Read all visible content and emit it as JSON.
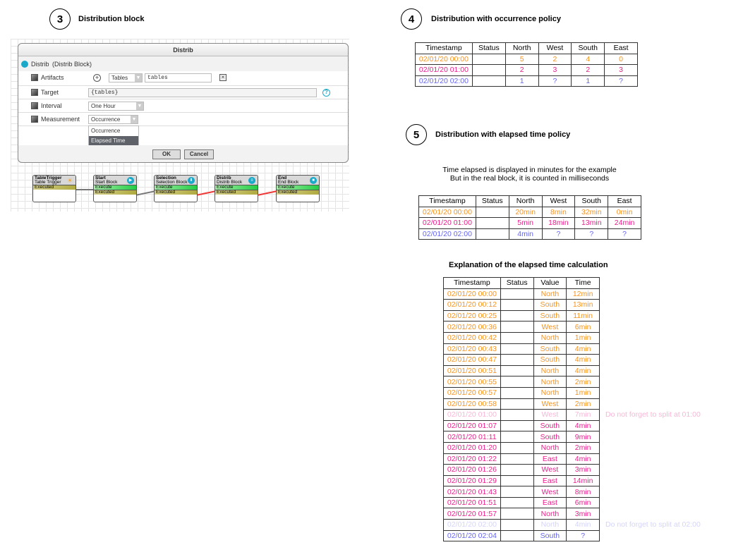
{
  "sections": {
    "s3": {
      "number": "3",
      "title": "Distribution block"
    },
    "s4": {
      "number": "4",
      "title": "Distribution with occurrence policy"
    },
    "s5": {
      "number": "5",
      "title": "Distribution with elapsed time policy"
    }
  },
  "colors": {
    "hour0": "#f7931e",
    "hour1": "#ec1e8c",
    "hour2": "#6464f5",
    "hour1_faded": "#f8b6d6",
    "hour2_faded": "#d4d4fb"
  },
  "dialog": {
    "title": "Distrib",
    "block_name": "Distrib",
    "block_type": "(Distrib Block)",
    "artifacts_label": "Artifacts",
    "artifacts_type": "Tables",
    "artifacts_value": "tables",
    "target_label": "Target",
    "target_value": "{tables}",
    "interval_label": "Interval",
    "interval_value": "One Hour",
    "measurement_label": "Measurement",
    "measurement_value": "Occurrence",
    "measurement_options": [
      "Occurrence",
      "Elapsed Time"
    ],
    "ok": "OK",
    "cancel": "Cancel"
  },
  "workflow": [
    {
      "title": "TableTrigger",
      "subtitle": "Table Trigger",
      "ports": [
        "Executed"
      ],
      "icon": "sun-icon"
    },
    {
      "title": "Start",
      "subtitle": "Start Block",
      "ports": [
        "Execute",
        "Executed"
      ],
      "icon": "play-icon"
    },
    {
      "title": "Selection",
      "subtitle": "Selection Block",
      "ports": [
        "Execute",
        "Executed"
      ],
      "icon": "filter-icon"
    },
    {
      "title": "Distrib",
      "subtitle": "Distrib Block",
      "ports": [
        "Execute",
        "Executed"
      ],
      "icon": "distrib-icon"
    },
    {
      "title": "End",
      "subtitle": "End Block",
      "ports": [
        "Execute",
        "Executed"
      ],
      "icon": "stop-icon"
    }
  ],
  "occurrence_table": {
    "headers": [
      "Timestamp",
      "Status",
      "North",
      "West",
      "South",
      "East"
    ],
    "rows": [
      {
        "hour": 0,
        "cells": [
          "02/01/20 00:00",
          "",
          "5",
          "2",
          "4",
          "0"
        ]
      },
      {
        "hour": 1,
        "cells": [
          "02/01/20 01:00",
          "",
          "2",
          "3",
          "2",
          "3"
        ]
      },
      {
        "hour": 2,
        "cells": [
          "02/01/20 02:00",
          "",
          "1",
          "?",
          "1",
          "?"
        ]
      }
    ]
  },
  "elapsed": {
    "note_line1": "Time elapsed is displayed in minutes for the example",
    "note_line2": "But in the real block, it is counted in milliseconds",
    "headers": [
      "Timestamp",
      "Status",
      "North",
      "West",
      "South",
      "East"
    ],
    "rows": [
      {
        "hour": 0,
        "cells": [
          "02/01/20 00:00",
          "",
          "20min",
          "8min",
          "32min",
          "0min"
        ]
      },
      {
        "hour": 1,
        "cells": [
          "02/01/20 01:00",
          "",
          "5min",
          "18min",
          "13min",
          "24min"
        ]
      },
      {
        "hour": 2,
        "cells": [
          "02/01/20 02:00",
          "",
          "4min",
          "?",
          "?",
          "?"
        ]
      }
    ]
  },
  "explanation": {
    "title": "Explanation of the elapsed time calculation",
    "headers": [
      "Timestamp",
      "Status",
      "Value",
      "Time"
    ],
    "rows": [
      {
        "hour": 0,
        "cells": [
          "02/01/20 00:00",
          "",
          "North",
          "12min"
        ]
      },
      {
        "hour": 0,
        "cells": [
          "02/01/20 00:12",
          "",
          "South",
          "13min"
        ]
      },
      {
        "hour": 0,
        "cells": [
          "02/01/20 00:25",
          "",
          "South",
          "11min"
        ]
      },
      {
        "hour": 0,
        "cells": [
          "02/01/20 00:36",
          "",
          "West",
          "6min"
        ]
      },
      {
        "hour": 0,
        "cells": [
          "02/01/20 00:42",
          "",
          "North",
          "1min"
        ]
      },
      {
        "hour": 0,
        "cells": [
          "02/01/20 00:43",
          "",
          "South",
          "4min"
        ]
      },
      {
        "hour": 0,
        "cells": [
          "02/01/20 00:47",
          "",
          "South",
          "4min"
        ]
      },
      {
        "hour": 0,
        "cells": [
          "02/01/20 00:51",
          "",
          "North",
          "4min"
        ]
      },
      {
        "hour": 0,
        "cells": [
          "02/01/20 00:55",
          "",
          "North",
          "2min"
        ]
      },
      {
        "hour": 0,
        "cells": [
          "02/01/20 00:57",
          "",
          "North",
          "1min"
        ]
      },
      {
        "hour": 0,
        "cells": [
          "02/01/20 00:58",
          "",
          "West",
          "2min"
        ]
      },
      {
        "hour": "1f",
        "cells": [
          "02/01/20 01:00",
          "",
          "West",
          "7min"
        ],
        "note": "Do not forget to split at 01:00"
      },
      {
        "hour": 1,
        "cells": [
          "02/01/20 01:07",
          "",
          "South",
          "4min"
        ]
      },
      {
        "hour": 1,
        "cells": [
          "02/01/20 01:11",
          "",
          "South",
          "9min"
        ]
      },
      {
        "hour": 1,
        "cells": [
          "02/01/20 01:20",
          "",
          "North",
          "2min"
        ]
      },
      {
        "hour": 1,
        "cells": [
          "02/01/20 01:22",
          "",
          "East",
          "4min"
        ]
      },
      {
        "hour": 1,
        "cells": [
          "02/01/20 01:26",
          "",
          "West",
          "3min"
        ]
      },
      {
        "hour": 1,
        "cells": [
          "02/01/20 01:29",
          "",
          "East",
          "14min"
        ]
      },
      {
        "hour": 1,
        "cells": [
          "02/01/20 01:43",
          "",
          "West",
          "8min"
        ]
      },
      {
        "hour": 1,
        "cells": [
          "02/01/20 01:51",
          "",
          "East",
          "6min"
        ]
      },
      {
        "hour": 1,
        "cells": [
          "02/01/20 01:57",
          "",
          "North",
          "3min"
        ]
      },
      {
        "hour": "2f",
        "cells": [
          "02/01/20 02:00",
          "",
          "North",
          "4min"
        ],
        "note": "Do not forget to split at 02:00"
      },
      {
        "hour": 2,
        "cells": [
          "02/01/20 02:04",
          "",
          "South",
          "?"
        ]
      }
    ]
  }
}
